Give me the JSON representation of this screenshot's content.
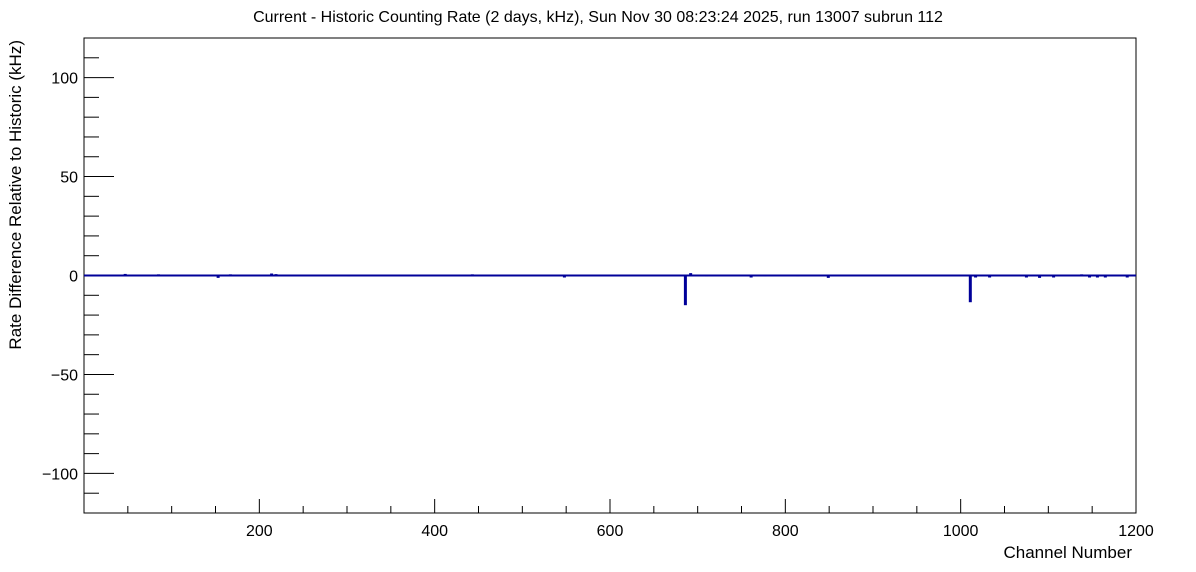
{
  "chart_data": {
    "type": "bar",
    "title": "Current - Historic Counting Rate (2 days, kHz), Sun Nov 30 08:23:24 2025, run 13007 subrun 112",
    "xlabel": "Channel Number",
    "ylabel": "Rate Difference Relative to Historic (kHz)",
    "xlim": [
      0,
      1200
    ],
    "ylim": [
      -120,
      120
    ],
    "x_ticks": [
      200,
      400,
      600,
      800,
      1000,
      1200
    ],
    "y_ticks": [
      -100,
      -50,
      0,
      50,
      100
    ],
    "x_tick_labels": [
      "200",
      "400",
      "600",
      "800",
      "1000",
      "1200"
    ],
    "y_tick_labels": [
      "−100",
      "−50",
      "0",
      "50",
      "100"
    ],
    "grid": false,
    "series_color": "#000099",
    "baseline": 0,
    "points": [
      {
        "x": 47,
        "y": 0.8
      },
      {
        "x": 85,
        "y": 0.6
      },
      {
        "x": 153,
        "y": -1.2
      },
      {
        "x": 167,
        "y": 0.6
      },
      {
        "x": 214,
        "y": 1.0
      },
      {
        "x": 219,
        "y": 0.7
      },
      {
        "x": 302,
        "y": 0.5
      },
      {
        "x": 443,
        "y": 0.6
      },
      {
        "x": 548,
        "y": -0.9
      },
      {
        "x": 686,
        "y": -15.0
      },
      {
        "x": 692,
        "y": 1.2
      },
      {
        "x": 710,
        "y": 0.5
      },
      {
        "x": 761,
        "y": -0.9
      },
      {
        "x": 777,
        "y": 0.5
      },
      {
        "x": 814,
        "y": 0.5
      },
      {
        "x": 849,
        "y": -1.2
      },
      {
        "x": 1011,
        "y": -13.5
      },
      {
        "x": 1017,
        "y": -0.6
      },
      {
        "x": 1033,
        "y": -0.7
      },
      {
        "x": 1075,
        "y": -0.6
      },
      {
        "x": 1090,
        "y": -1.2
      },
      {
        "x": 1106,
        "y": -1.0
      },
      {
        "x": 1138,
        "y": 0.6
      },
      {
        "x": 1147,
        "y": -0.5
      },
      {
        "x": 1156,
        "y": -0.5
      },
      {
        "x": 1165,
        "y": -0.7
      },
      {
        "x": 1190,
        "y": -0.6
      }
    ]
  }
}
